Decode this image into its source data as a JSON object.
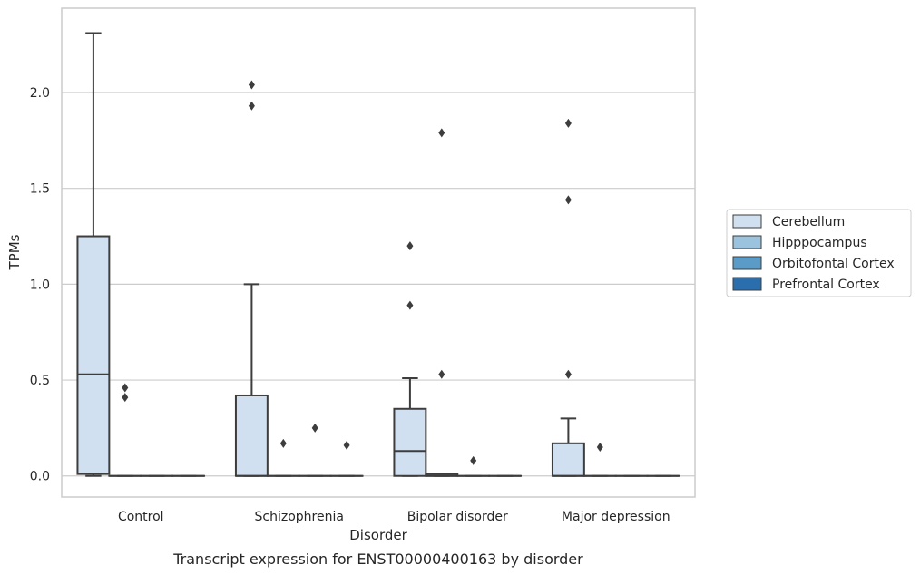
{
  "chart_data": {
    "type": "box",
    "xlabel": "Disorder",
    "ylabel": "TPMs",
    "caption": "Transcript expression for ENST00000400163 by disorder",
    "ylim": [
      -0.11,
      2.44
    ],
    "yticks": [
      0.0,
      0.5,
      1.0,
      1.5,
      2.0
    ],
    "ytick_labels": [
      "0.0",
      "0.5",
      "1.0",
      "1.5",
      "2.0"
    ],
    "grid": "horizontal",
    "legend_position": "right",
    "categories": [
      "Control",
      "Schizophrenia",
      "Bipolar disorder",
      "Major depression"
    ],
    "series": [
      {
        "name": "Cerebellum",
        "color": "#d0e0f0",
        "boxes": [
          {
            "q1": 0.01,
            "median": 0.53,
            "q3": 1.25,
            "whislo": 0.0,
            "whishi": 2.31,
            "fliers": []
          },
          {
            "q1": 0.0,
            "median": 0.0,
            "q3": 0.42,
            "whislo": 0.0,
            "whishi": 1.0,
            "fliers": [
              1.93,
              2.04
            ]
          },
          {
            "q1": 0.0,
            "median": 0.13,
            "q3": 0.35,
            "whislo": 0.0,
            "whishi": 0.51,
            "fliers": [
              0.89,
              1.2
            ]
          },
          {
            "q1": 0.0,
            "median": 0.0,
            "q3": 0.17,
            "whislo": 0.0,
            "whishi": 0.3,
            "fliers": [
              0.53,
              1.44,
              1.84
            ]
          }
        ]
      },
      {
        "name": "Hipppocampus",
        "color": "#9cc3dd",
        "boxes": [
          {
            "q1": 0.0,
            "median": 0.0,
            "q3": 0.0,
            "whislo": 0.0,
            "whishi": 0.0,
            "fliers": [
              0.41,
              0.46
            ]
          },
          {
            "q1": 0.0,
            "median": 0.0,
            "q3": 0.0,
            "whislo": 0.0,
            "whishi": 0.0,
            "fliers": [
              0.17
            ]
          },
          {
            "q1": 0.0,
            "median": 0.0,
            "q3": 0.01,
            "whislo": 0.0,
            "whishi": 0.01,
            "fliers": [
              0.53,
              1.79
            ]
          },
          {
            "q1": 0.0,
            "median": 0.0,
            "q3": 0.0,
            "whislo": 0.0,
            "whishi": 0.0,
            "fliers": [
              0.15
            ]
          }
        ]
      },
      {
        "name": "Orbitofontal Cortex",
        "color": "#5a9bc7",
        "boxes": [
          {
            "q1": 0.0,
            "median": 0.0,
            "q3": 0.0,
            "whislo": 0.0,
            "whishi": 0.0,
            "fliers": []
          },
          {
            "q1": 0.0,
            "median": 0.0,
            "q3": 0.0,
            "whislo": 0.0,
            "whishi": 0.0,
            "fliers": [
              0.25
            ]
          },
          {
            "q1": 0.0,
            "median": 0.0,
            "q3": 0.0,
            "whislo": 0.0,
            "whishi": 0.0,
            "fliers": [
              0.08
            ]
          },
          {
            "q1": 0.0,
            "median": 0.0,
            "q3": 0.0,
            "whislo": 0.0,
            "whishi": 0.0,
            "fliers": []
          }
        ]
      },
      {
        "name": "Prefrontal Cortex",
        "color": "#2a6eae",
        "boxes": [
          {
            "q1": 0.0,
            "median": 0.0,
            "q3": 0.0,
            "whislo": 0.0,
            "whishi": 0.0,
            "fliers": []
          },
          {
            "q1": 0.0,
            "median": 0.0,
            "q3": 0.0,
            "whislo": 0.0,
            "whishi": 0.0,
            "fliers": [
              0.16
            ]
          },
          {
            "q1": 0.0,
            "median": 0.0,
            "q3": 0.0,
            "whislo": 0.0,
            "whishi": 0.0,
            "fliers": []
          },
          {
            "q1": 0.0,
            "median": 0.0,
            "q3": 0.0,
            "whislo": 0.0,
            "whishi": 0.0,
            "fliers": []
          }
        ]
      }
    ]
  }
}
